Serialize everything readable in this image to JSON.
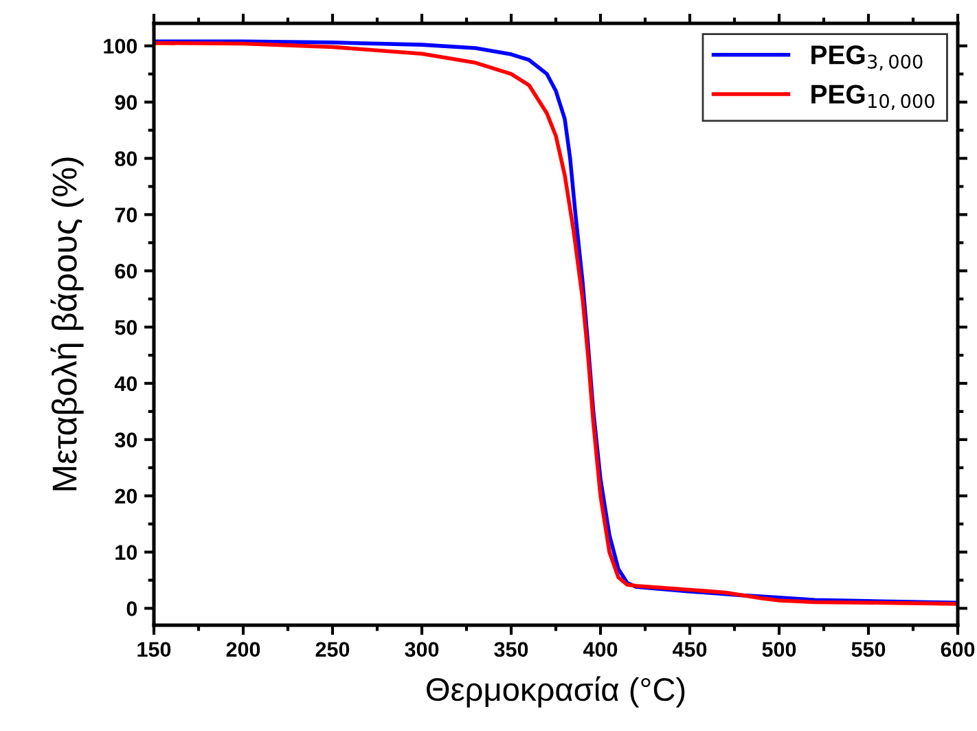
{
  "chart_data": {
    "type": "line",
    "xlabel": "Θερμοκρασία (°C)",
    "ylabel": "Μεταβολή βάρους (%)",
    "xlim": [
      150,
      600
    ],
    "xticks": [
      150,
      200,
      250,
      300,
      350,
      400,
      450,
      500,
      550,
      600
    ],
    "ylim": [
      -3,
      104
    ],
    "yticks": [
      0,
      10,
      20,
      30,
      40,
      50,
      60,
      70,
      80,
      90,
      100
    ],
    "legend": "top right",
    "grid": false,
    "line_style": "solid",
    "marker": "none",
    "series": [
      {
        "name": "PEG$_{3,000}$",
        "color": "#0000ff",
        "x": [
          150,
          200,
          250,
          300,
          330,
          350,
          360,
          370,
          375,
          380,
          383,
          386,
          390,
          393,
          396,
          400,
          405,
          410,
          415,
          420,
          450,
          480,
          500,
          520,
          550,
          600
        ],
        "values": [
          100.8,
          100.8,
          100.6,
          100.2,
          99.6,
          98.5,
          97.5,
          95,
          92,
          87,
          80,
          70,
          58,
          47,
          35,
          23,
          13,
          7,
          4.5,
          3.8,
          3.0,
          2.3,
          1.9,
          1.5,
          1.3,
          1.0
        ]
      },
      {
        "name": "PEG$_{10,000}$",
        "color": "#ff0000",
        "x": [
          150,
          200,
          250,
          300,
          330,
          350,
          360,
          370,
          375,
          380,
          385,
          390,
          393,
          396,
          400,
          405,
          410,
          415,
          420,
          450,
          470,
          490,
          500,
          520,
          550,
          600
        ],
        "values": [
          100.5,
          100.4,
          99.8,
          98.6,
          97,
          95,
          93,
          88,
          84,
          77,
          67,
          55,
          45,
          33,
          20,
          10,
          5.5,
          4.2,
          4.0,
          3.3,
          2.8,
          1.8,
          1.4,
          1.1,
          1.0,
          0.8
        ]
      }
    ]
  }
}
